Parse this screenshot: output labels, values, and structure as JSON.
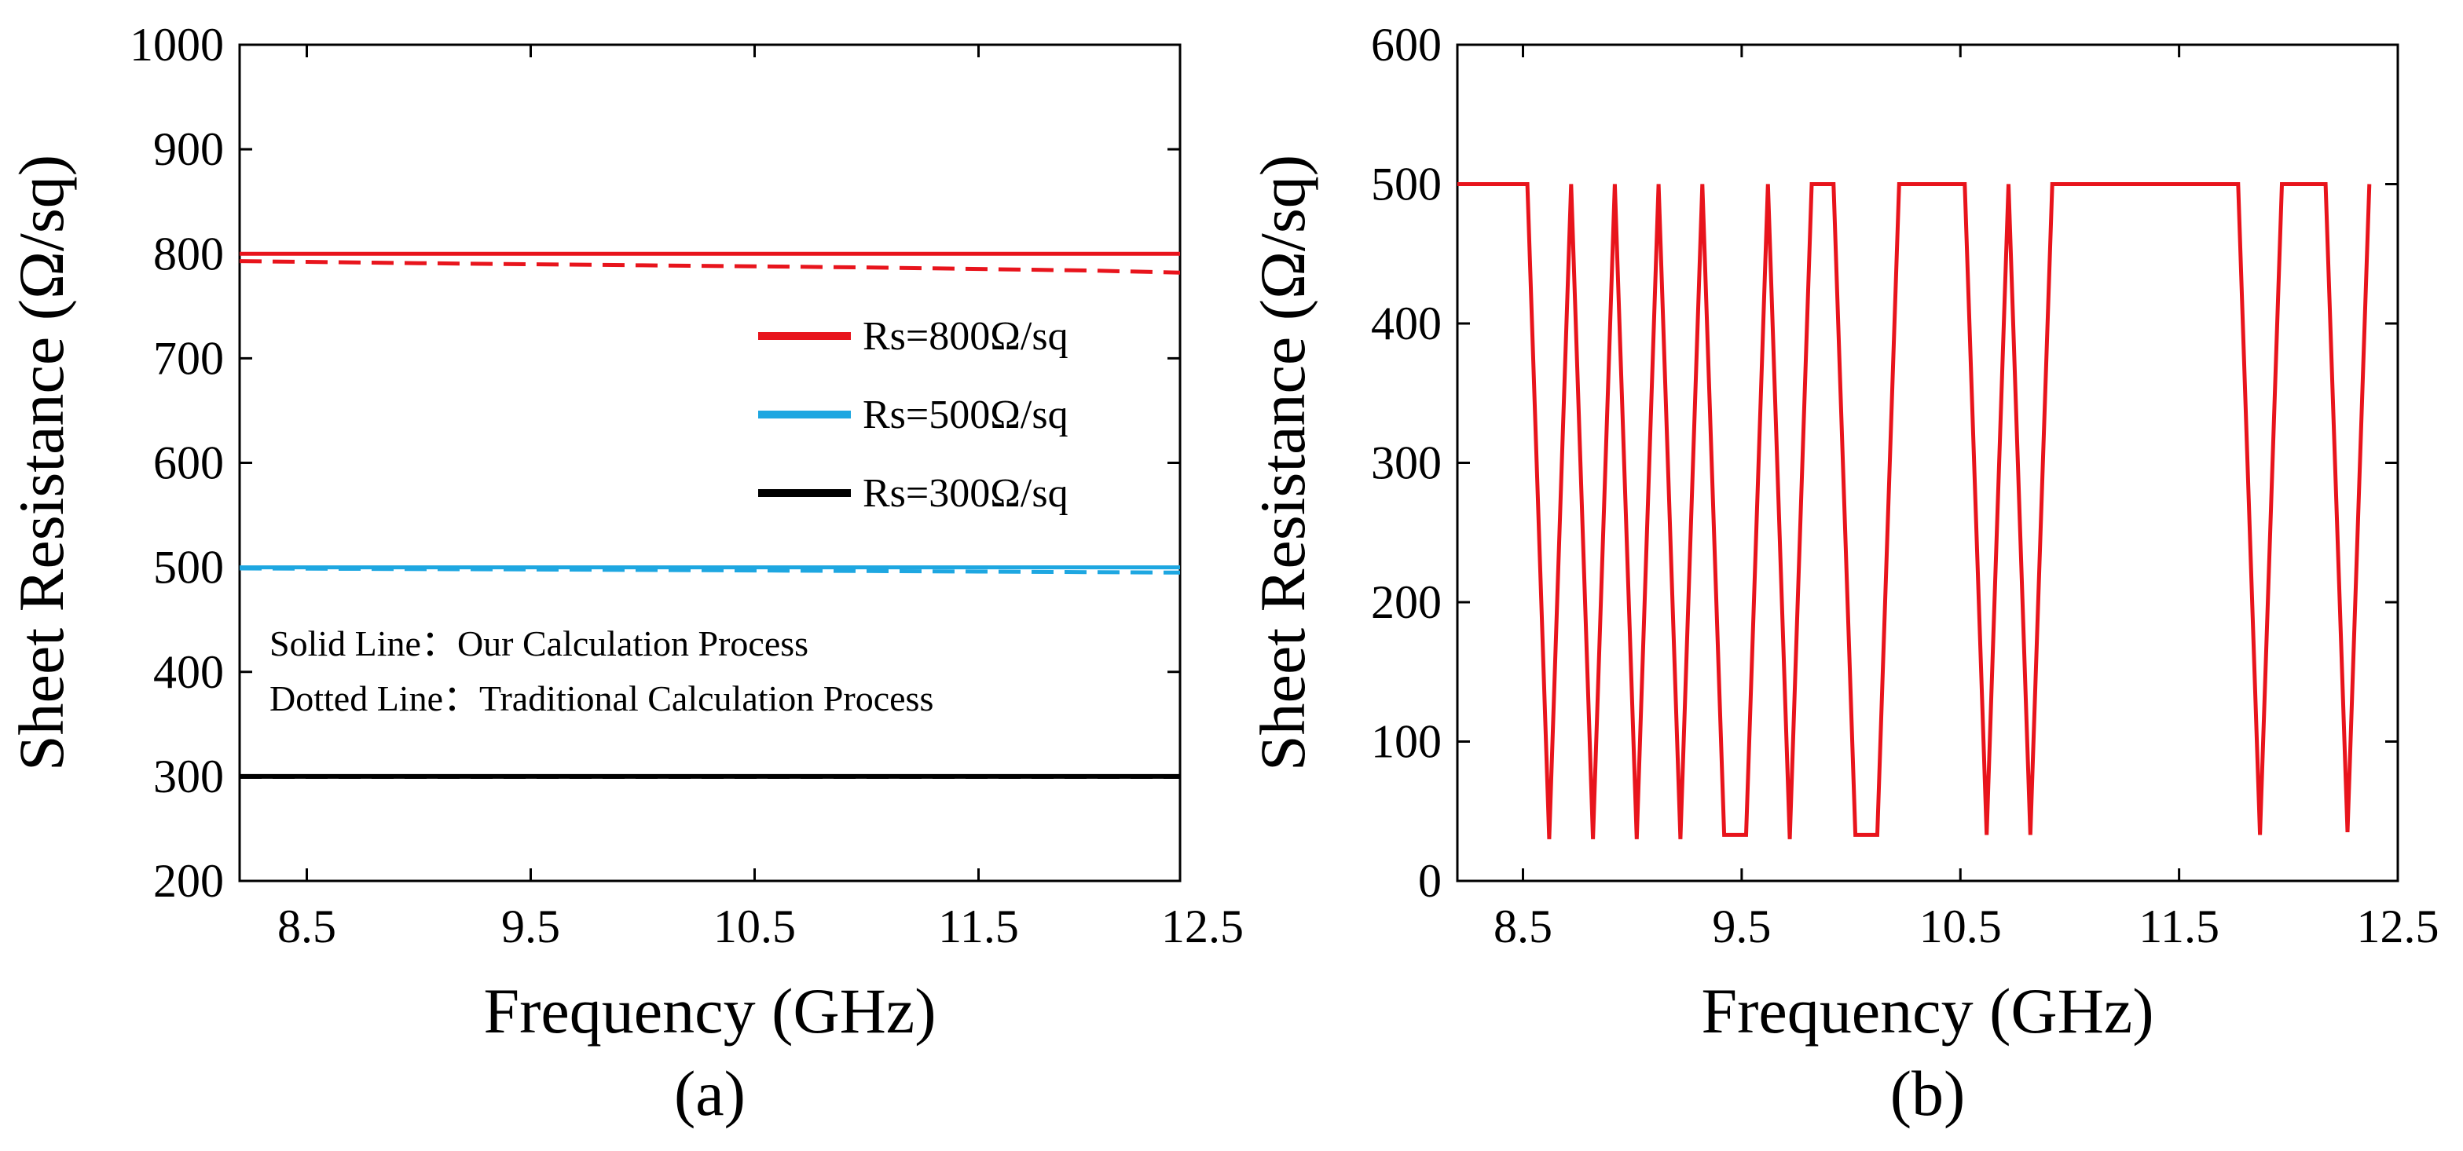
{
  "chart_data": [
    {
      "type": "line",
      "panel_label": "(a)",
      "xlabel": "Frequency (GHz)",
      "ylabel": "Sheet Resistance (Ω/sq)",
      "xlim": [
        8.2,
        12.4
      ],
      "ylim": [
        200,
        1000
      ],
      "xticks": [
        8.5,
        9.5,
        10.5,
        11.5,
        12.5
      ],
      "xtick_labels": [
        "8.5",
        "9.5",
        "10.5",
        "11.5",
        "12.5"
      ],
      "yticks": [
        200,
        300,
        400,
        500,
        600,
        700,
        800,
        900,
        1000
      ],
      "ytick_labels": [
        "200",
        "300",
        "400",
        "500",
        "600",
        "700",
        "800",
        "900",
        "1000"
      ],
      "legend": {
        "position": "right-middle",
        "entries": [
          {
            "label": "Rs=800Ω/sq",
            "color": "#e8141c"
          },
          {
            "label": "Rs=500Ω/sq",
            "color": "#1ea7e1"
          },
          {
            "label": "Rs=300Ω/sq",
            "color": "#000000"
          }
        ]
      },
      "annotations": [
        "Solid Line：Our Calculation Process",
        "Dotted Line：Traditional Calculation Process"
      ],
      "series": [
        {
          "name": "Rs=800Ω/sq (our)",
          "color": "#e8141c",
          "style": "solid",
          "x": [
            8.2,
            12.4
          ],
          "y": [
            800,
            800
          ]
        },
        {
          "name": "Rs=800Ω/sq (traditional)",
          "color": "#e8141c",
          "style": "dashed",
          "x": [
            8.2,
            9.0,
            10.0,
            11.0,
            12.0,
            12.4
          ],
          "y": [
            793,
            791,
            789,
            787,
            784,
            782
          ]
        },
        {
          "name": "Rs=500Ω/sq (our)",
          "color": "#1ea7e1",
          "style": "solid",
          "x": [
            8.2,
            12.4
          ],
          "y": [
            500,
            500
          ]
        },
        {
          "name": "Rs=500Ω/sq (traditional)",
          "color": "#1ea7e1",
          "style": "dashed",
          "x": [
            8.2,
            9.5,
            10.5,
            11.5,
            12.4
          ],
          "y": [
            499,
            498,
            497,
            496,
            495
          ]
        },
        {
          "name": "Rs=300Ω/sq (our)",
          "color": "#000000",
          "style": "solid",
          "x": [
            8.2,
            12.4
          ],
          "y": [
            300,
            300
          ]
        },
        {
          "name": "Rs=300Ω/sq (traditional)",
          "color": "#000000",
          "style": "dashed",
          "x": [
            8.2,
            12.4
          ],
          "y": [
            299.5,
            299.5
          ]
        }
      ]
    },
    {
      "type": "line",
      "panel_label": "(b)",
      "xlabel": "Frequency (GHz)",
      "ylabel": "Sheet Resistance (Ω/sq)",
      "xlim": [
        8.2,
        12.5
      ],
      "ylim": [
        0,
        600
      ],
      "xticks": [
        8.5,
        9.5,
        10.5,
        11.5,
        12.5
      ],
      "xtick_labels": [
        "8.5",
        "9.5",
        "10.5",
        "11.5",
        "12.5"
      ],
      "yticks": [
        0,
        100,
        200,
        300,
        400,
        500,
        600
      ],
      "ytick_labels": [
        "0",
        "100",
        "200",
        "300",
        "400",
        "500",
        "600"
      ],
      "series": [
        {
          "name": "Sheet Resistance",
          "color": "#e8141c",
          "style": "solid",
          "x": [
            8.2,
            8.52,
            8.62,
            8.72,
            8.82,
            8.92,
            9.02,
            9.12,
            9.22,
            9.32,
            9.42,
            9.52,
            9.62,
            9.72,
            9.82,
            9.92,
            10.02,
            10.12,
            10.22,
            10.32,
            10.42,
            10.52,
            10.62,
            10.72,
            10.82,
            10.92,
            11.02,
            11.12,
            11.22,
            11.32,
            11.42,
            11.52,
            11.62,
            11.72,
            11.77,
            11.87,
            11.97,
            12.07,
            12.17,
            12.27,
            12.37
          ],
          "y": [
            500,
            500,
            30,
            500,
            30,
            500,
            30,
            500,
            30,
            500,
            33,
            33,
            500,
            30,
            500,
            500,
            33,
            33,
            500,
            500,
            500,
            500,
            33,
            500,
            33,
            500,
            500,
            500,
            500,
            500,
            500,
            500,
            500,
            500,
            500,
            33,
            500,
            500,
            500,
            35,
            500
          ]
        }
      ]
    }
  ]
}
